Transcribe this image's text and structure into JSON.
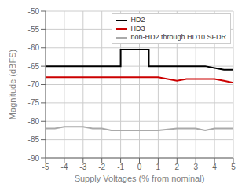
{
  "chart_data": {
    "type": "line",
    "xlabel": "Supply Voltages (% from nominal)",
    "ylabel": "Magnitude (dBFS)",
    "xlim": [
      -5,
      5
    ],
    "ylim": [
      -90,
      -50
    ],
    "xticks": [
      -5,
      -4,
      -3,
      -2,
      -1,
      0,
      1,
      2,
      3,
      4,
      5
    ],
    "yticks": [
      -90,
      -85,
      -80,
      -75,
      -70,
      -65,
      -60,
      -55,
      -50
    ],
    "grid": true,
    "legend": "upper right",
    "series": [
      {
        "name": "HD2",
        "color": "#000000",
        "x": [
          -5.0,
          -4.0,
          -3.0,
          -2.0,
          -1.5,
          -1.0,
          -1.0,
          0.5,
          0.5,
          1.5,
          1.5,
          3.0,
          3.5,
          4.0,
          4.5,
          5.0
        ],
        "values": [
          -65.0,
          -65.0,
          -65.0,
          -65.0,
          -65.0,
          -65.0,
          -60.5,
          -60.5,
          -65.0,
          -65.0,
          -65.0,
          -65.0,
          -65.0,
          -65.5,
          -66.0,
          -66.0
        ]
      },
      {
        "name": "HD3",
        "color": "#cc0000",
        "x": [
          -5.0,
          -4.0,
          -3.0,
          -2.0,
          -1.0,
          0.0,
          1.0,
          1.5,
          2.0,
          2.5,
          3.0,
          4.0,
          4.5,
          5.0
        ],
        "values": [
          -68.0,
          -68.0,
          -68.0,
          -68.0,
          -68.0,
          -68.0,
          -68.0,
          -68.5,
          -69.0,
          -68.5,
          -68.5,
          -68.5,
          -69.0,
          -69.5
        ]
      },
      {
        "name": "non-HD2 through HD10 SFDR",
        "color": "#aaaaaa",
        "x": [
          -5.0,
          -4.5,
          -4.0,
          -3.0,
          -2.5,
          -2.0,
          -1.5,
          -1.0,
          0.0,
          1.0,
          2.0,
          3.0,
          3.5,
          4.0,
          5.0
        ],
        "values": [
          -82.0,
          -82.0,
          -81.5,
          -81.5,
          -82.0,
          -82.0,
          -82.5,
          -82.5,
          -82.5,
          -82.5,
          -82.0,
          -82.0,
          -82.5,
          -82.0,
          -82.0
        ]
      }
    ]
  }
}
